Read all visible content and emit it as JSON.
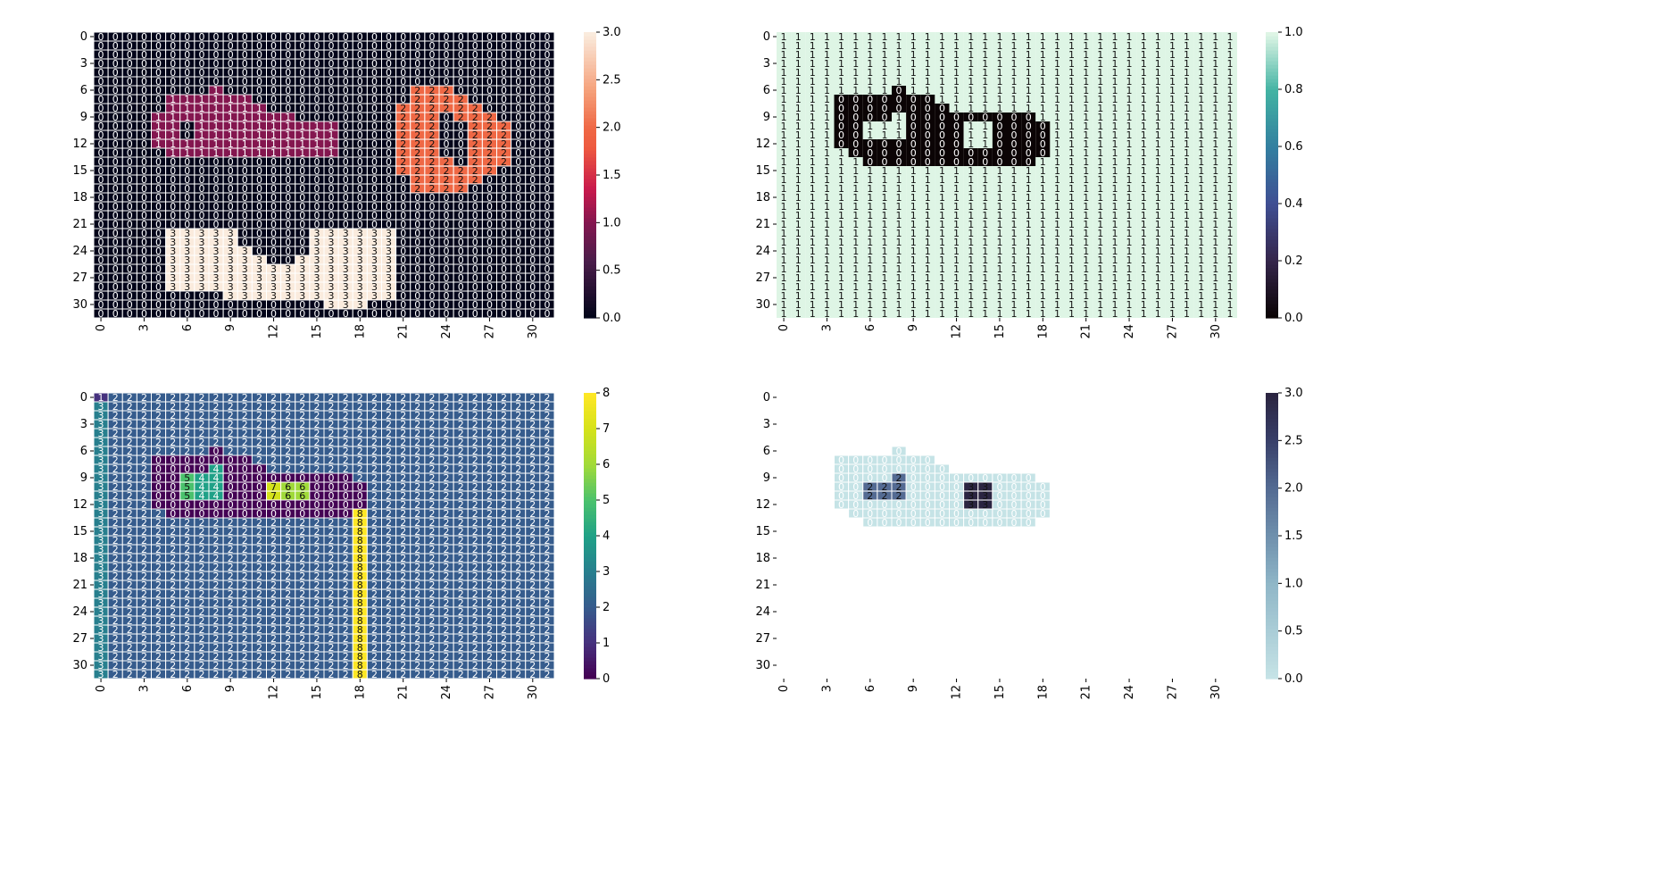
{
  "figure": {
    "panels": [
      {
        "id": "top-left",
        "type": "heatmap",
        "colormap": "rocket",
        "vmin": 0,
        "vmax": 3,
        "colorbar_ticks": [
          "0.0",
          "0.5",
          "1.0",
          "1.5",
          "2.0",
          "2.5",
          "3.0"
        ],
        "x_ticks": [
          "0",
          "3",
          "6",
          "9",
          "12",
          "15",
          "18",
          "21",
          "24",
          "27",
          "30"
        ],
        "y_ticks": [
          "0",
          "3",
          "6",
          "9",
          "12",
          "15",
          "18",
          "21",
          "24",
          "27",
          "30"
        ],
        "grid_lines": true,
        "annotated": true
      },
      {
        "id": "top-right",
        "type": "heatmap",
        "colormap": "mako",
        "vmin": 0,
        "vmax": 1,
        "colorbar_ticks": [
          "0.0",
          "0.2",
          "0.4",
          "0.6",
          "0.8",
          "1.0"
        ],
        "x_ticks": [
          "0",
          "3",
          "6",
          "9",
          "12",
          "15",
          "18",
          "21",
          "24",
          "27",
          "30"
        ],
        "y_ticks": [
          "0",
          "3",
          "6",
          "9",
          "12",
          "15",
          "18",
          "21",
          "24",
          "27",
          "30"
        ],
        "grid_lines": false,
        "annotated": true
      },
      {
        "id": "bottom-left",
        "type": "heatmap",
        "colormap": "viridis",
        "vmin": 0,
        "vmax": 8,
        "colorbar_ticks": [
          "0",
          "1",
          "2",
          "3",
          "4",
          "5",
          "6",
          "7",
          "8"
        ],
        "x_ticks": [
          "0",
          "3",
          "6",
          "9",
          "12",
          "15",
          "18",
          "21",
          "24",
          "27",
          "30"
        ],
        "y_ticks": [
          "0",
          "3",
          "6",
          "9",
          "12",
          "15",
          "18",
          "21",
          "24",
          "27",
          "30"
        ],
        "grid_lines": true,
        "annotated": true
      },
      {
        "id": "bottom-right",
        "type": "heatmap",
        "colormap": "blue-gray (light to dark navy)",
        "vmin": 0,
        "vmax": 3,
        "colorbar_ticks": [
          "0.0",
          "0.5",
          "1.0",
          "1.5",
          "2.0",
          "2.5",
          "3.0"
        ],
        "x_ticks": [
          "0",
          "3",
          "6",
          "9",
          "12",
          "15",
          "18",
          "21",
          "24",
          "27",
          "30"
        ],
        "y_ticks": [
          "0",
          "3",
          "6",
          "9",
          "12",
          "15",
          "18",
          "21",
          "24",
          "27",
          "30"
        ],
        "grid_lines": true,
        "annotated": true,
        "note": "cells equal to 1 are masked (blank)"
      }
    ]
  },
  "chart_data": [
    {
      "type": "heatmap",
      "rows": 32,
      "cols": 32,
      "vmin": 0,
      "vmax": 3,
      "xlabel": "",
      "ylabel": "",
      "values_rows": [
        "00000000000000000000000000000000",
        "00000000000000000000000000000000",
        "00000000000000000000000000000000",
        "00000000000000000000000000000000",
        "00000000000000000000000000000000",
        "00000000000000000000000000000000",
        "00000000100000000000002220000000",
        "00000111111000000000002222000000",
        "00000111111100000000022222200000",
        "00001111111111000000022202220000",
        "00001101111111111000022200222000",
        "00001101111111111000022200222000",
        "00001111111111111000022200222000",
        "00000111111111111000022200222000",
        "00000000000000000000022220222000",
        "00000000000000000000022222220000",
        "00000000000000000000002222200000",
        "00000000000000000000002222000000",
        "00000000000000000000000000000000",
        "00000000000000000000000000000000",
        "00000000000000000000000000000000",
        "00000000000000000000000000000000",
        "00000333330000033333300000000000",
        "00000333330000033333300000000000",
        "00000333333000033333300000000000",
        "00000333333300333333300000000000",
        "00000333333333333333300000000000",
        "00000333333333333333300000000000",
        "00000333333333333333300000000000",
        "00000000033333333333300000000000",
        "00000000000000003330000000000000",
        "00000000000000000000000000000000"
      ]
    },
    {
      "type": "heatmap",
      "rows": 32,
      "cols": 32,
      "vmin": 0,
      "vmax": 1,
      "xlabel": "",
      "ylabel": "",
      "values_rows": [
        "11111111111111111111111111111111",
        "11111111111111111111111111111111",
        "11111111111111111111111111111111",
        "11111111111111111111111111111111",
        "11111111111111111111111111111111",
        "11111111111111111111111111111111",
        "11111111011111111111111111111111",
        "11110000000111111111111111111111",
        "11110000000011111111111111111111",
        "11110000100000000011111111111111",
        "11110011100001100001111111111111",
        "11110011100001100001111111111111",
        "11110000000001100001111111111111",
        "11111000000000000001111111111111",
        "11111100000000000011111111111111",
        "11111111111111111111111111111111",
        "11111111111111111111111111111111",
        "11111111111111111111111111111111",
        "11111111111111111111111111111111",
        "11111111111111111111111111111111",
        "11111111111111111111111111111111",
        "11111111111111111111111111111111",
        "11111111111111111111111111111111",
        "11111111111111111111111111111111",
        "11111111111111111111111111111111",
        "11111111111111111111111111111111",
        "11111111111111111111111111111111",
        "11111111111111111111111111111111",
        "11111111111111111111111111111111",
        "11111111111111111111111111111111",
        "11111111111111111111111111111111",
        "11111111111111111111111111111111"
      ]
    },
    {
      "type": "heatmap",
      "rows": 32,
      "cols": 32,
      "vmin": 0,
      "vmax": 8,
      "xlabel": "",
      "ylabel": "",
      "values_rows": [
        "12222222222222222222222222222222",
        "32222222222222222222222222222222",
        "32222222222222222222222222222222",
        "32222222222222222222222222222222",
        "32222222222222222222222222222222",
        "32222222222222222222222222222222",
        "32222222022222222222222222222222",
        "32220000000222222222222222222222",
        "32220000400022222222222222222222",
        "32220054400000000022222222222222",
        "32220054400076600002222222222222",
        "32220054400076600002222222222222",
        "32220000000000000002222222222222",
        "32222000000000000082222222222222",
        "32222222222222222282222222222222",
        "32222222222222222282222222222222",
        "32222222222222222282222222222222",
        "32222222222222222282222222222222",
        "32222222222222222282222222222222",
        "32222222222222222282222222222222",
        "32222222222222222282222222222222",
        "32222222222222222282222222222222",
        "32222222222222222282222222222222",
        "32222222222222222282222222222222",
        "32222222222222222282222222222222",
        "32222222222222222282222222222222",
        "32222222222222222282222222222222",
        "32222222222222222282222222222222",
        "32222222222222222282222222222222",
        "32222222222222222282222222222222",
        "32222222222222222282222222222222",
        "32222222222222222282222222222222"
      ]
    },
    {
      "type": "heatmap",
      "rows": 32,
      "cols": 32,
      "vmin": 0,
      "vmax": 3,
      "xlabel": "",
      "ylabel": "",
      "masked_value": 1,
      "values_rows": [
        "11111111111111111111111111111111",
        "11111111111111111111111111111111",
        "11111111111111111111111111111111",
        "11111111111111111111111111111111",
        "11111111111111111111111111111111",
        "11111111111111111111111111111111",
        "11111111011111111111111111111111",
        "11110000000111111111111111111111",
        "11110000000011111111111111111111",
        "11110000200000000011111111111111",
        "11110022200003300001111111111111",
        "11110022200003300001111111111111",
        "11110000000003300001111111111111",
        "11111000000000000001111111111111",
        "11111100000000000011111111111111",
        "11111111111111111111111111111111",
        "11111111111111111111111111111111",
        "11111111111111111111111111111111",
        "11111111111111111111111111111111",
        "11111111111111111111111111111111",
        "11111111111111111111111111111111",
        "11111111111111111111111111111111",
        "11111111111111111111111111111111",
        "11111111111111111111111111111111",
        "11111111111111111111111111111111",
        "11111111111111111111111111111111",
        "11111111111111111111111111111111",
        "11111111111111111111111111111111",
        "11111111111111111111111111111111",
        "11111111111111111111111111111111",
        "11111111111111111111111111111111",
        "11111111111111111111111111111111"
      ]
    }
  ]
}
